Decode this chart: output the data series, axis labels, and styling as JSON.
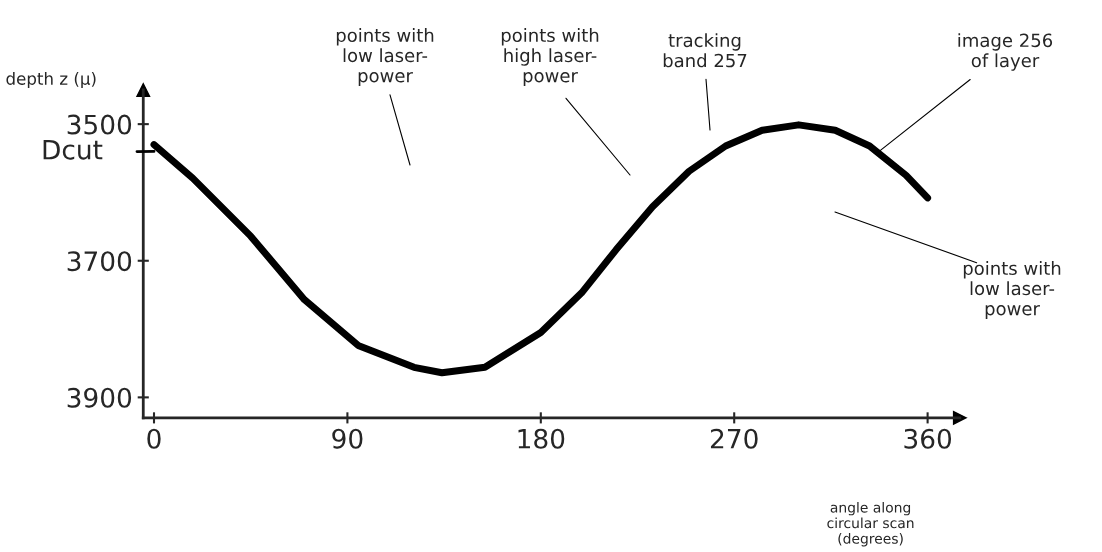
{
  "chart_data": {
    "type": "line",
    "xlabel": "angle along\ncircular scan\n(degrees)",
    "ylabel": "depth z (μ)",
    "x": [
      0,
      18,
      45,
      70,
      95,
      121,
      134,
      154,
      180,
      199,
      215,
      232,
      249,
      266,
      283,
      300,
      317,
      333,
      350,
      360
    ],
    "series": [
      {
        "color": "#000000",
        "values": [
          3530,
          3579,
          3664,
          3757,
          3824,
          3856,
          3864,
          3856,
          3805,
          3747,
          3684,
          3621,
          3569,
          3532,
          3509,
          3501,
          3509,
          3532,
          3575,
          3608
        ]
      }
    ],
    "xlim": [
      -5,
      375
    ],
    "xticks": [
      0,
      90,
      180,
      270,
      360
    ],
    "ylim": [
      3930,
      3450
    ],
    "yticks": [
      3500,
      3700,
      3900
    ],
    "grid": false,
    "legend": false,
    "marker": "none",
    "line_style": "solid",
    "annotations": [
      "points with\nlow laser-\npower",
      "points with\nhigh laser-\npower",
      "tracking\nband 257",
      {
        "text": "image 256\nof layer",
        "x": 337,
        "y": 3541
      },
      "points with\nlow laser-\npower",
      {
        "text": "Dcut",
        "x": 0,
        "y": 3540
      }
    ]
  }
}
